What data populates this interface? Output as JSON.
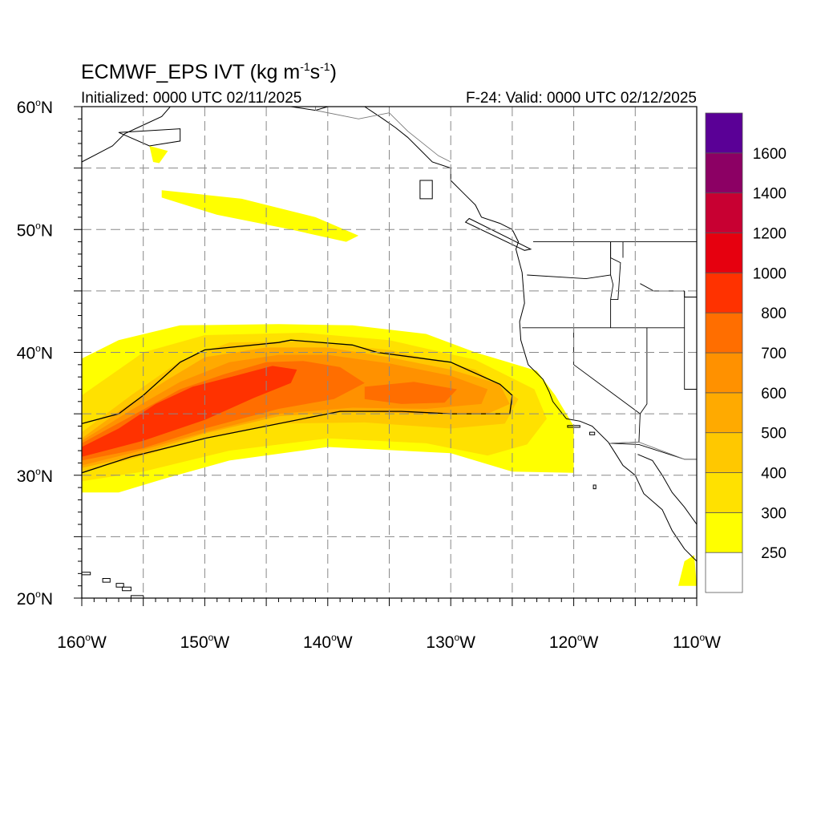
{
  "header": {
    "title_main": "ECMWF_EPS IVT (kg m",
    "title_exp1": "-1",
    "title_mid": "s",
    "title_exp2": "-1",
    "title_close": ")",
    "initialized": "Initialized: 0000 UTC 02/11/2025",
    "valid": "F-24: Valid: 0000 UTC 02/12/2025"
  },
  "map": {
    "lon_range": [
      -160,
      -110
    ],
    "lat_range": [
      20,
      60
    ],
    "x_ticks": [
      {
        "value": -160,
        "num": "160",
        "hemi": "W"
      },
      {
        "value": -150,
        "num": "150",
        "hemi": "W"
      },
      {
        "value": -140,
        "num": "140",
        "hemi": "W"
      },
      {
        "value": -130,
        "num": "130",
        "hemi": "W"
      },
      {
        "value": -120,
        "num": "120",
        "hemi": "W"
      },
      {
        "value": -110,
        "num": "110",
        "hemi": "W"
      }
    ],
    "y_ticks": [
      {
        "value": 60,
        "num": "60",
        "hemi": "N"
      },
      {
        "value": 50,
        "num": "50",
        "hemi": "N"
      },
      {
        "value": 40,
        "num": "40",
        "hemi": "N"
      },
      {
        "value": 30,
        "num": "30",
        "hemi": "N"
      },
      {
        "value": 20,
        "num": "20",
        "hemi": "N"
      }
    ],
    "grid_dashed": true,
    "colorbar": {
      "labels": [
        "250",
        "300",
        "400",
        "500",
        "600",
        "700",
        "800",
        "1000",
        "1200",
        "1400",
        "1600"
      ],
      "colors": [
        "#ffffff",
        "#ffff00",
        "#ffe100",
        "#ffc800",
        "#ffaa00",
        "#ff9100",
        "#ff6e00",
        "#ff3200",
        "#e6000f",
        "#c80032",
        "#8c0064",
        "#5a0096"
      ]
    },
    "ivt_fields": [
      {
        "level": 250,
        "color": "#ffff00",
        "polygon": [
          [
            -160,
            39.5
          ],
          [
            -157,
            41
          ],
          [
            -152,
            42.2
          ],
          [
            -144,
            42.3
          ],
          [
            -138,
            42.2
          ],
          [
            -132,
            41.5
          ],
          [
            -128,
            40
          ],
          [
            -123,
            38.5
          ],
          [
            -121.5,
            36.5
          ],
          [
            -120,
            34
          ],
          [
            -120,
            30.2
          ],
          [
            -125,
            30.3
          ],
          [
            -130,
            31.8
          ],
          [
            -140,
            32.3
          ],
          [
            -148,
            31.2
          ],
          [
            -153,
            29.8
          ],
          [
            -157,
            28.6
          ],
          [
            -160,
            28.6
          ]
        ]
      },
      {
        "level": 250,
        "color": "#ffff00",
        "polygon": [
          [
            -153.5,
            53.2
          ],
          [
            -147,
            52.5
          ],
          [
            -141,
            51
          ],
          [
            -137.5,
            49.5
          ],
          [
            -138.5,
            49
          ],
          [
            -143,
            50
          ],
          [
            -149,
            51.2
          ],
          [
            -153.5,
            52.6
          ]
        ]
      },
      {
        "level": 250,
        "color": "#ffff00",
        "polygon": [
          [
            -154.5,
            56.8
          ],
          [
            -153,
            56.4
          ],
          [
            -153.7,
            55.4
          ],
          [
            -154.2,
            55.5
          ]
        ]
      },
      {
        "level": 250,
        "color": "#ffff00",
        "polygon": [
          [
            -111,
            23
          ],
          [
            -110.2,
            23.5
          ],
          [
            -110,
            21
          ],
          [
            -111.5,
            21
          ]
        ]
      },
      {
        "level": 300,
        "color": "#ffe100",
        "polygon": [
          [
            -160,
            36.5
          ],
          [
            -155,
            40
          ],
          [
            -150,
            41.4
          ],
          [
            -142,
            41.6
          ],
          [
            -135,
            41
          ],
          [
            -128,
            39.4
          ],
          [
            -123.2,
            37
          ],
          [
            -122.2,
            34.6
          ],
          [
            -123.8,
            32.5
          ],
          [
            -127,
            31.6
          ],
          [
            -132,
            32.6
          ],
          [
            -140,
            33
          ],
          [
            -148,
            32
          ],
          [
            -155,
            30.3
          ],
          [
            -160,
            29.5
          ]
        ]
      },
      {
        "level": 400,
        "color": "#ffc800",
        "polygon": [
          [
            -160,
            33.5
          ],
          [
            -156,
            36.5
          ],
          [
            -152,
            39.3
          ],
          [
            -148,
            40.8
          ],
          [
            -142,
            40.9
          ],
          [
            -135,
            40.2
          ],
          [
            -128,
            38.6
          ],
          [
            -124.5,
            36.2
          ],
          [
            -125.6,
            34.2
          ],
          [
            -130,
            33.8
          ],
          [
            -137,
            34.3
          ],
          [
            -144,
            34.2
          ],
          [
            -150,
            33
          ],
          [
            -156,
            31.3
          ],
          [
            -160,
            30.3
          ]
        ]
      },
      {
        "level": 500,
        "color": "#ffaa00",
        "polygon": [
          [
            -160,
            33
          ],
          [
            -157,
            35.2
          ],
          [
            -153,
            37.8
          ],
          [
            -150,
            39.6
          ],
          [
            -145,
            40.4
          ],
          [
            -140,
            40.4
          ],
          [
            -135,
            39.6
          ],
          [
            -130,
            38.6
          ],
          [
            -126,
            37.4
          ],
          [
            -125.2,
            35.8
          ],
          [
            -127,
            35
          ],
          [
            -132,
            35
          ],
          [
            -138,
            35.2
          ],
          [
            -144,
            34.8
          ],
          [
            -150,
            33.4
          ],
          [
            -156,
            31.5
          ],
          [
            -160,
            30.6
          ]
        ]
      },
      {
        "level": 600,
        "color": "#ff9100",
        "polygon": [
          [
            -160,
            32.8
          ],
          [
            -156,
            35.3
          ],
          [
            -152,
            37.6
          ],
          [
            -148,
            39.2
          ],
          [
            -144,
            39.8
          ],
          [
            -140,
            39.8
          ],
          [
            -135,
            39.1
          ],
          [
            -130,
            38.1
          ],
          [
            -127,
            37
          ],
          [
            -127.5,
            35.8
          ],
          [
            -132,
            35.4
          ],
          [
            -138,
            35.5
          ],
          [
            -144,
            35
          ],
          [
            -150,
            33.5
          ],
          [
            -156,
            31.8
          ],
          [
            -160,
            30.8
          ]
        ]
      },
      {
        "level": 700,
        "color": "#ff6e00",
        "polygon": [
          [
            -160,
            32.6
          ],
          [
            -156,
            34.8
          ],
          [
            -152,
            37
          ],
          [
            -148.5,
            38.2
          ],
          [
            -145,
            39.2
          ],
          [
            -142,
            39.3
          ],
          [
            -139,
            38.8
          ],
          [
            -137,
            37.5
          ],
          [
            -139.5,
            36.2
          ],
          [
            -144,
            35.4
          ],
          [
            -150,
            33.8
          ],
          [
            -155,
            32.2
          ],
          [
            -160,
            31.2
          ]
        ]
      },
      {
        "level": 700,
        "color": "#ff6e00",
        "polygon": [
          [
            -137,
            37.2
          ],
          [
            -133,
            37.6
          ],
          [
            -129.5,
            37
          ],
          [
            -130.5,
            35.9
          ],
          [
            -134,
            35.8
          ],
          [
            -137,
            36.2
          ]
        ]
      },
      {
        "level": 800,
        "color": "#ff3200",
        "polygon": [
          [
            -160,
            32.3
          ],
          [
            -157,
            33.8
          ],
          [
            -154,
            35.8
          ],
          [
            -151,
            37.2
          ],
          [
            -147.5,
            38.1
          ],
          [
            -144.5,
            38.9
          ],
          [
            -142.5,
            38.6
          ],
          [
            -143,
            37.5
          ],
          [
            -146,
            36.3
          ],
          [
            -150,
            34.5
          ],
          [
            -155,
            32.8
          ],
          [
            -160,
            31.5
          ]
        ]
      }
    ],
    "ivt_250_contour": [
      [
        -160,
        34.2
      ],
      [
        -157,
        35
      ],
      [
        -155,
        36.5
      ],
      [
        -152,
        39.2
      ],
      [
        -150,
        40.2
      ],
      [
        -144,
        40.8
      ],
      [
        -143,
        41
      ],
      [
        -138,
        40.6
      ],
      [
        -136,
        40
      ],
      [
        -130,
        39.2
      ],
      [
        -126,
        37.4
      ],
      [
        -125,
        36.5
      ],
      [
        -125.2,
        35
      ],
      [
        -130,
        35
      ],
      [
        -134,
        35.2
      ],
      [
        -139,
        35.2
      ],
      [
        -145,
        34
      ],
      [
        -150,
        33
      ],
      [
        -156,
        31.5
      ],
      [
        -160,
        30.2
      ]
    ],
    "coastline_na": [
      [
        -137,
        60
      ],
      [
        -135.5,
        59
      ],
      [
        -134.5,
        58.3
      ],
      [
        -133.5,
        57.5
      ],
      [
        -132.5,
        56.5
      ],
      [
        -131.5,
        55.5
      ],
      [
        -130,
        55
      ],
      [
        -130,
        54
      ],
      [
        -129,
        53
      ],
      [
        -128,
        52
      ],
      [
        -127.5,
        51
      ],
      [
        -126,
        50.5
      ],
      [
        -125,
        50
      ],
      [
        -124.5,
        49
      ],
      [
        -124.7,
        48.4
      ],
      [
        -124.2,
        46.5
      ],
      [
        -124,
        44
      ],
      [
        -124.4,
        42.5
      ],
      [
        -124.3,
        41
      ],
      [
        -123.7,
        39
      ],
      [
        -122.5,
        37.8
      ],
      [
        -122,
        36.8
      ],
      [
        -121.7,
        36
      ],
      [
        -120.6,
        34.6
      ],
      [
        -119.5,
        34.4
      ],
      [
        -118.5,
        34
      ],
      [
        -117.2,
        32.7
      ],
      [
        -116.5,
        31.6
      ],
      [
        -116,
        30.8
      ],
      [
        -115,
        30
      ],
      [
        -114.3,
        28.5
      ],
      [
        -112.8,
        27.2
      ],
      [
        -112,
        25.5
      ],
      [
        -111,
        24
      ],
      [
        -110,
        23
      ]
    ],
    "coastline_gulf": [
      [
        -114.8,
        31.7
      ],
      [
        -113.6,
        31.2
      ],
      [
        -112.8,
        30
      ],
      [
        -112,
        28.6
      ],
      [
        -111,
        27.4
      ],
      [
        -110,
        26
      ]
    ],
    "coastline_alaska": [
      [
        -160,
        55.5
      ],
      [
        -157.5,
        56.8
      ],
      [
        -156.5,
        57.8
      ],
      [
        -155,
        58.5
      ],
      [
        -153.5,
        59.2
      ],
      [
        -152.8,
        60
      ]
    ],
    "coastline_ak_se": [
      [
        -140,
        60
      ],
      [
        -141,
        59.7
      ],
      [
        -143,
        60
      ],
      [
        -137,
        60
      ]
    ],
    "islands_hawaii": [
      [
        [
          -160.2,
          22.1
        ],
        [
          -159.3,
          22.1
        ],
        [
          -159.3,
          21.9
        ],
        [
          -160.2,
          21.9
        ]
      ],
      [
        [
          -158.3,
          21.6
        ],
        [
          -157.7,
          21.6
        ],
        [
          -157.7,
          21.3
        ],
        [
          -158.3,
          21.3
        ]
      ],
      [
        [
          -157.2,
          21.2
        ],
        [
          -156.6,
          21.2
        ],
        [
          -156.6,
          20.9
        ],
        [
          -157.2,
          20.9
        ]
      ],
      [
        [
          -156.7,
          20.9
        ],
        [
          -156,
          20.9
        ],
        [
          -156,
          20.6
        ],
        [
          -156.7,
          20.6
        ]
      ],
      [
        [
          -156,
          20.2
        ],
        [
          -155,
          20.2
        ],
        [
          -154.9,
          19.5
        ],
        [
          -156,
          19.5
        ]
      ]
    ],
    "islands_other": [
      [
        [
          -120.5,
          34.05
        ],
        [
          -119.5,
          34.05
        ],
        [
          -119.5,
          33.9
        ],
        [
          -120.5,
          33.9
        ]
      ],
      [
        [
          -118.7,
          33.5
        ],
        [
          -118.3,
          33.5
        ],
        [
          -118.3,
          33.3
        ],
        [
          -118.7,
          33.3
        ]
      ],
      [
        [
          -118.4,
          29.2
        ],
        [
          -118.2,
          29.2
        ],
        [
          -118.2,
          28.9
        ],
        [
          -118.4,
          28.9
        ]
      ],
      [
        [
          -132.5,
          54
        ],
        [
          -131.5,
          54
        ],
        [
          -131.5,
          52.5
        ],
        [
          -132.5,
          52.5
        ]
      ],
      [
        [
          -128.5,
          50.9
        ],
        [
          -123.5,
          48.4
        ],
        [
          -124,
          48.3
        ],
        [
          -128.8,
          50.6
        ]
      ],
      [
        [
          -157,
          57.9
        ],
        [
          -152,
          58.2
        ],
        [
          -152,
          57.2
        ],
        [
          -154.5,
          56.8
        ]
      ]
    ],
    "state_borders": [
      [
        [
          -124.2,
          42
        ],
        [
          -120,
          42
        ],
        [
          -120,
          39
        ],
        [
          -114.6,
          35
        ],
        [
          -114.7,
          32.7
        ],
        [
          -117.1,
          32.6
        ]
      ],
      [
        [
          -123.8,
          46.3
        ],
        [
          -119,
          46
        ],
        [
          -117,
          46.3
        ],
        [
          -117,
          49
        ]
      ],
      [
        [
          -117,
          46.3
        ],
        [
          -116.8,
          45.5
        ],
        [
          -117,
          44.3
        ],
        [
          -117,
          42
        ]
      ],
      [
        [
          -120,
          42
        ],
        [
          -111,
          42
        ]
      ],
      [
        [
          -114.05,
          42
        ],
        [
          -114.05,
          35.8
        ],
        [
          -114.6,
          35
        ]
      ],
      [
        [
          -111,
          45
        ],
        [
          -111,
          42
        ],
        [
          -111,
          37
        ],
        [
          -110,
          37
        ]
      ],
      [
        [
          -117.1,
          32.6
        ],
        [
          -114.7,
          32.5
        ],
        [
          -111,
          31.3
        ],
        [
          -110,
          31.3
        ]
      ],
      [
        [
          -123.3,
          49
        ],
        [
          -110,
          49
        ]
      ],
      [
        [
          -117,
          49
        ],
        [
          -117,
          47.7
        ],
        [
          -116.2,
          47.3
        ],
        [
          -116.4,
          44.3
        ],
        [
          -117.0,
          44.3
        ]
      ],
      [
        [
          -111,
          45
        ],
        [
          -111,
          44.5
        ],
        [
          -110,
          44.5
        ]
      ],
      [
        [
          -116,
          49
        ],
        [
          -116,
          47.7
        ]
      ],
      [
        [
          -114.6,
          45.6
        ],
        [
          -113.5,
          45
        ],
        [
          -111,
          45
        ]
      ]
    ],
    "country_borders": [
      [
        [
          -141,
          60
        ],
        [
          -141,
          59.7
        ],
        [
          -137.5,
          59
        ],
        [
          -135,
          59.5
        ],
        [
          -133.5,
          58
        ],
        [
          -131,
          56
        ],
        [
          -130,
          55.5
        ]
      ],
      [
        [
          -117.1,
          32.6
        ],
        [
          -114.7,
          32.7
        ],
        [
          -111,
          31.3
        ],
        [
          -108,
          31.3
        ]
      ]
    ]
  }
}
